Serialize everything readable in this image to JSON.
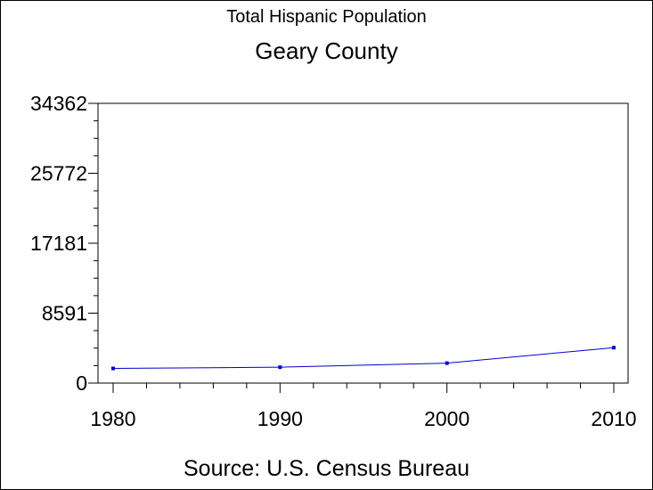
{
  "chart_data": {
    "type": "line",
    "title": "Total Hispanic Population",
    "subtitle": "Geary County",
    "footnote": "Source: U.S. Census Bureau",
    "x": [
      1980,
      1990,
      2000,
      2010
    ],
    "x_tick_labels": [
      "1980",
      "1990",
      "2000",
      "2010"
    ],
    "xlim": [
      1980,
      2010
    ],
    "series": [
      {
        "values": [
          1800,
          1950,
          2450,
          4350
        ],
        "color": "#0000cc"
      }
    ],
    "y_ticks": [
      0,
      8591,
      17181,
      25772,
      34362
    ],
    "y_tick_labels": [
      "0",
      "8591",
      "17181",
      "25772",
      "34362"
    ],
    "ylim": [
      0,
      34362
    ],
    "grid": false,
    "legend": "none"
  }
}
